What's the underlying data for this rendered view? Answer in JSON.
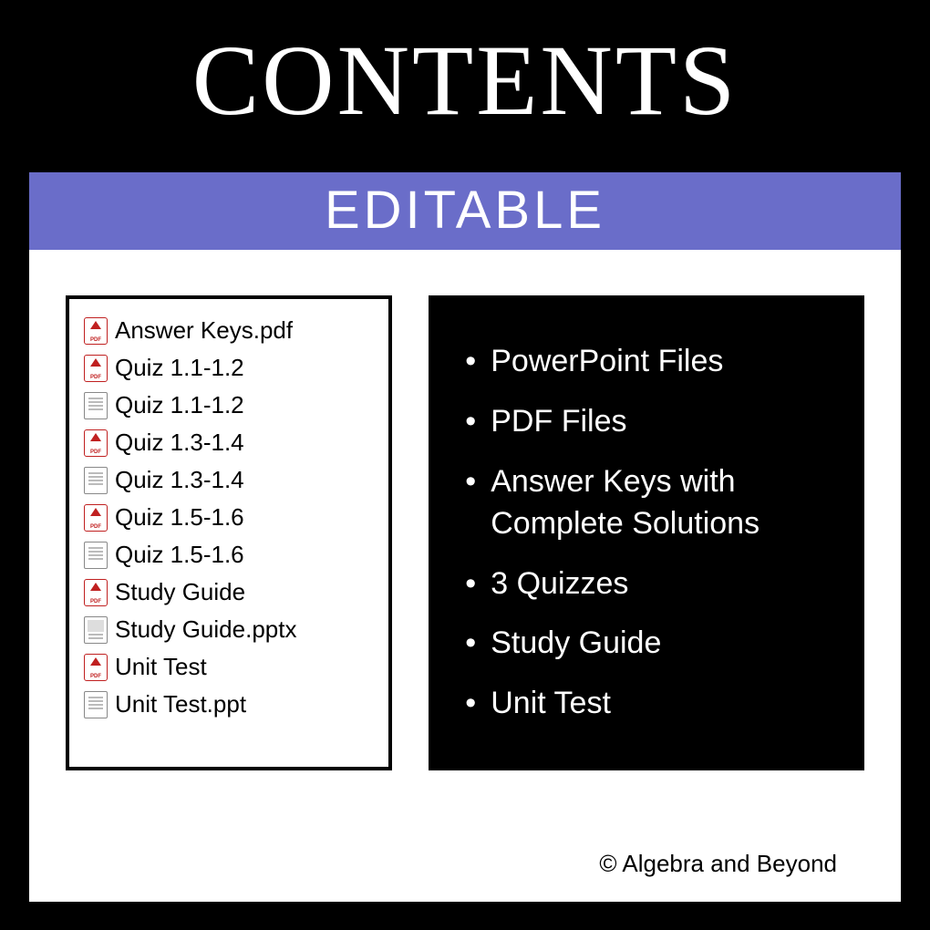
{
  "title": "CONTENTS",
  "banner": "EDITABLE",
  "colors": {
    "page_bg": "#000000",
    "panel_bg": "#ffffff",
    "banner_bg": "#6a6dc9",
    "banner_text": "#ffffff",
    "title_text": "#ffffff",
    "body_text": "#000000",
    "bullets_bg": "#000000",
    "bullets_text": "#ffffff",
    "pdf_icon_color": "#c02020",
    "doc_icon_color": "#888888"
  },
  "typography": {
    "title_fontsize": 110,
    "banner_fontsize": 58,
    "file_fontsize": 26,
    "bullet_fontsize": 34,
    "copyright_fontsize": 26
  },
  "files": [
    {
      "icon": "pdf",
      "name": "Answer Keys.pdf"
    },
    {
      "icon": "pdf",
      "name": "Quiz 1.1-1.2"
    },
    {
      "icon": "doc",
      "name": "Quiz 1.1-1.2"
    },
    {
      "icon": "pdf",
      "name": "Quiz 1.3-1.4"
    },
    {
      "icon": "doc",
      "name": "Quiz 1.3-1.4"
    },
    {
      "icon": "pdf",
      "name": "Quiz 1.5-1.6"
    },
    {
      "icon": "doc",
      "name": "Quiz 1.5-1.6"
    },
    {
      "icon": "pdf",
      "name": "Study Guide"
    },
    {
      "icon": "ppt",
      "name": "Study Guide.pptx"
    },
    {
      "icon": "pdf",
      "name": "Unit Test"
    },
    {
      "icon": "doc",
      "name": "Unit Test.ppt"
    }
  ],
  "bullets": [
    "PowerPoint Files",
    "PDF Files",
    "Answer Keys with Complete Solutions",
    "3 Quizzes",
    "Study Guide",
    "Unit Test"
  ],
  "copyright": "© Algebra and Beyond"
}
